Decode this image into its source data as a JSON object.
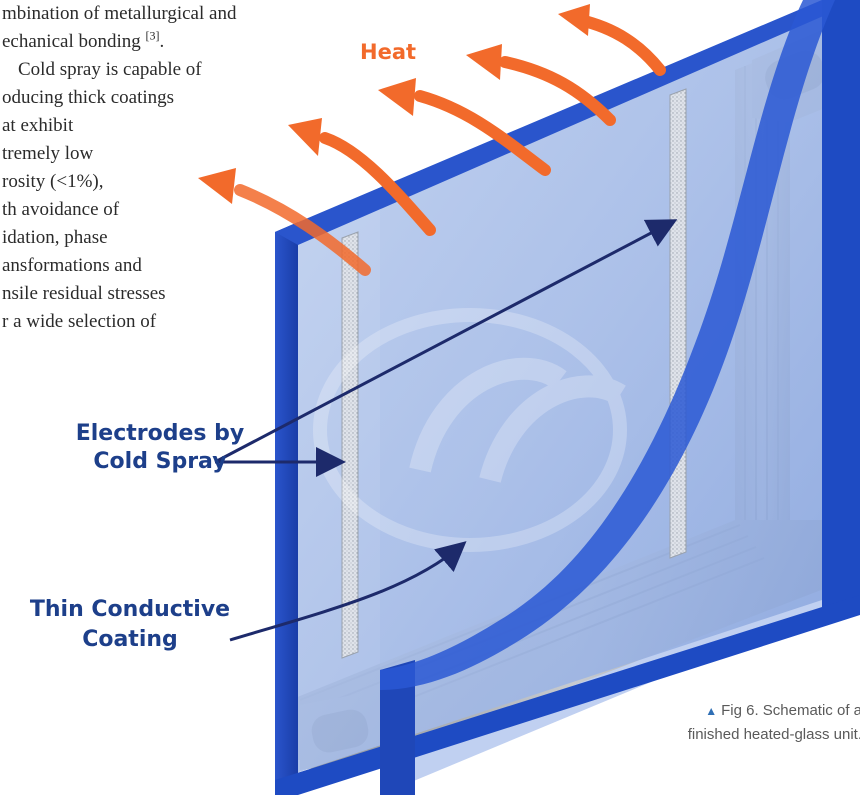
{
  "body_text": {
    "lines": [
      "mbination of metallurgical and",
      "echanical bonding",
      "Cold spray is capable of",
      "oducing thick coatings",
      "at exhibit",
      "tremely low",
      "rosity (<1%),",
      "th avoidance of",
      "idation, phase",
      "ansformations and",
      "nsile residual stresses",
      "r a wide selection of"
    ],
    "ref_mark": "[3]",
    "ref_suffix": "."
  },
  "diagram": {
    "heat_label": "Heat",
    "electrodes_label": [
      "Electrodes by",
      "Cold Spray"
    ],
    "coating_label": [
      "Thin Conductive",
      "Coating"
    ]
  },
  "caption": {
    "lines": [
      "Fig 6. Schematic of a",
      "finished heated-glass unit."
    ]
  },
  "colors": {
    "heat_arrow": "#f26a2b",
    "glass_dark": "#1e4bc3",
    "glass_light": "#a9c1e8",
    "label_blue": "#1d3f8a"
  }
}
